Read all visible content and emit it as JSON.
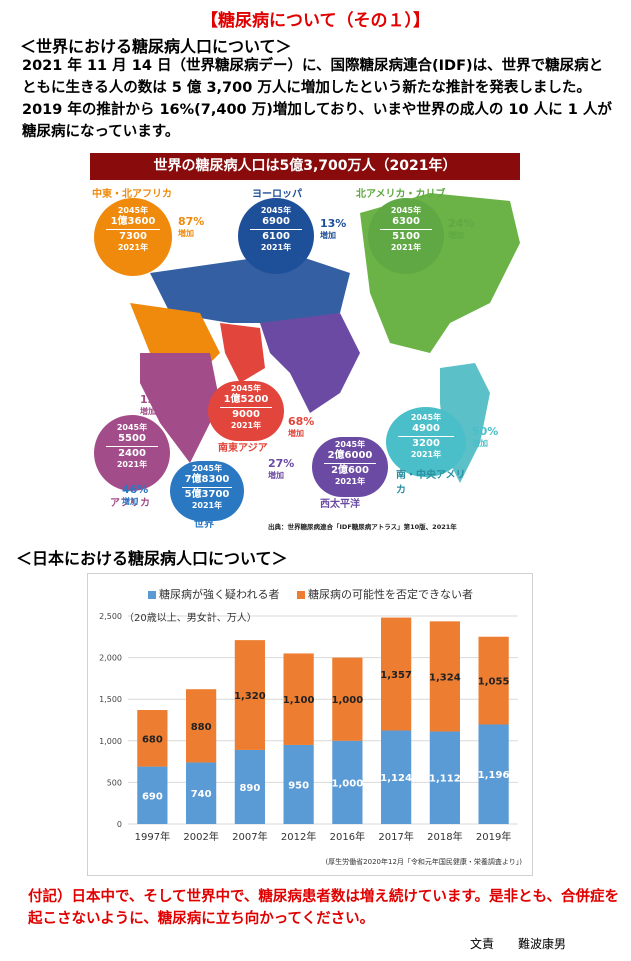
{
  "title": "【糖尿病について（その１）】",
  "section1_heading": "＜世界における糖尿病人口について＞",
  "intro_text": "2021 年 11 月 14 日（世界糖尿病デー）に、国際糖尿病連合(IDF)は、世界で糖尿病とともに生きる人の数は 5 億 3,700 万人に増加したという新たな推計を発表しました。2019 年の推計から 16%(7,400 万)増加しており、いまや世界の成人の 10 人に 1 人が糖尿病になっています。",
  "map": {
    "banner": "世界の糖尿病人口は5億3,700万人（2021年）",
    "source": "出典：世界糖尿病連合「IDF糖尿病アトラス」第10版、2021年",
    "regions": [
      {
        "name": "中東・北アフリカ",
        "y2045": "1億3600",
        "y2021": "7300",
        "pct": "87%",
        "color": "#ef8a0c"
      },
      {
        "name": "ヨーロッパ",
        "y2045": "6900",
        "y2021": "6100",
        "pct": "13%",
        "color": "#1e4f99"
      },
      {
        "name": "北アメリカ・カリブ",
        "y2045": "6300",
        "y2021": "5100",
        "pct": "24%",
        "color": "#5fa844"
      },
      {
        "name": "アフリカ",
        "y2045": "5500",
        "y2021": "2400",
        "pct": "134%",
        "color": "#a24d8a"
      },
      {
        "name": "南東アジア",
        "y2045": "1億5200",
        "y2021": "9000",
        "pct": "68%",
        "color": "#e2453b"
      },
      {
        "name": "南・中央アメリカ",
        "y2045": "4900",
        "y2021": "3200",
        "pct": "50%",
        "color": "#4bbfc9"
      },
      {
        "name": "西太平洋",
        "y2045": "2億6000",
        "y2021": "2億600",
        "pct": "27%",
        "color": "#6b4aa3"
      },
      {
        "name": "世界",
        "y2045": "7億8300",
        "y2021": "5億3700",
        "pct": "46%",
        "color": "#2b78c2"
      }
    ],
    "label_2045": "2045年",
    "label_2021": "2021年",
    "unit": "万人",
    "increase": "増加"
  },
  "section2_heading": "＜日本における糖尿病人口について＞",
  "chart_data": {
    "type": "bar",
    "stacked": true,
    "categories": [
      "1997年",
      "2002年",
      "2007年",
      "2012年",
      "2016年",
      "2017年",
      "2018年",
      "2019年"
    ],
    "series": [
      {
        "name": "糖尿病が強く疑われる者",
        "values": [
          690,
          740,
          890,
          950,
          1000,
          1124,
          1112,
          1196
        ],
        "labels": [
          "690",
          "740",
          "890",
          "950",
          "1,000",
          "1,124",
          "1,112",
          "1,196"
        ],
        "color": "#5b9bd5"
      },
      {
        "name": "糖尿病の可能性を否定できない者",
        "values": [
          680,
          880,
          1320,
          1100,
          1000,
          1357,
          1324,
          1055
        ],
        "labels": [
          "680",
          "880",
          "1,320",
          "1,100",
          "1,000",
          "1,357",
          "1,324",
          "1,055"
        ],
        "color": "#ed7d31"
      }
    ],
    "ylim": [
      0,
      2500
    ],
    "yticks": [
      "0",
      "500",
      "1,000",
      "1,500",
      "2,000",
      "2,500"
    ],
    "note": "（20歳以上、男女計、万人）",
    "source": "(厚生労働省2020年12月「令和元年国民健康・栄養調査より」)",
    "grid": true,
    "legend": "top"
  },
  "footnote": "付記）日本中で、そして世界中で、糖尿病患者数は増え続けています。是非とも、合併症を起こさないように、糖尿病に立ち向かってください。",
  "author": "文責　　難波康男"
}
